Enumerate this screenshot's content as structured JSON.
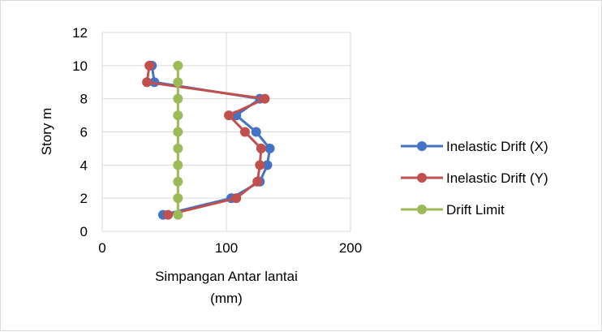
{
  "chart_data": {
    "type": "line",
    "title": "",
    "xlabel_lines": [
      "Simpangan Antar lantai",
      "(mm)"
    ],
    "ylabel": "Story m",
    "xlim": [
      0,
      200
    ],
    "ylim": [
      0,
      12
    ],
    "xticks": [
      0,
      100,
      200
    ],
    "yticks": [
      0,
      2,
      4,
      6,
      8,
      10,
      12
    ],
    "grid": true,
    "legend_position": "right",
    "series": [
      {
        "name": "Inelastic Drift (X)",
        "color": "#4472C4",
        "points": [
          [
            49,
            1
          ],
          [
            104,
            2
          ],
          [
            127,
            3
          ],
          [
            133,
            4
          ],
          [
            135,
            5
          ],
          [
            124,
            6
          ],
          [
            108,
            7
          ],
          [
            127,
            8
          ],
          [
            42,
            9
          ],
          [
            40,
            10
          ]
        ]
      },
      {
        "name": "Inelastic Drift (Y)",
        "color": "#C0504D",
        "points": [
          [
            53,
            1
          ],
          [
            108,
            2
          ],
          [
            125,
            3
          ],
          [
            127,
            4
          ],
          [
            128,
            5
          ],
          [
            115,
            6
          ],
          [
            102,
            7
          ],
          [
            131,
            8
          ],
          [
            36,
            9
          ],
          [
            38,
            10
          ]
        ]
      },
      {
        "name": "Drift Limit",
        "color": "#9BBB59",
        "points": [
          [
            61,
            1
          ],
          [
            61,
            2
          ],
          [
            61,
            3
          ],
          [
            61,
            4
          ],
          [
            61,
            5
          ],
          [
            61,
            6
          ],
          [
            61,
            7
          ],
          [
            61,
            8
          ],
          [
            61,
            9
          ],
          [
            61,
            10
          ]
        ]
      }
    ]
  }
}
